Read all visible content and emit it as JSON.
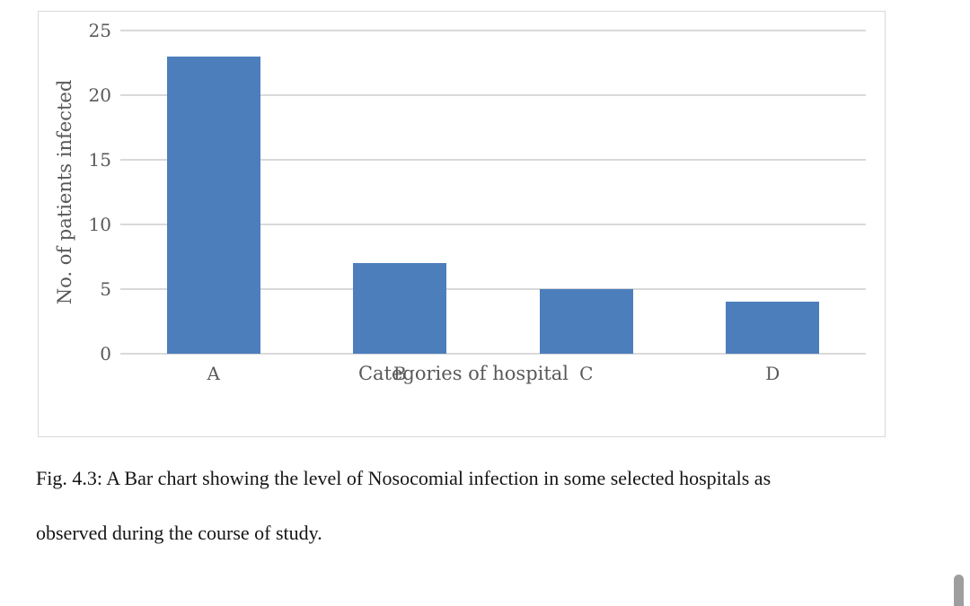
{
  "chart_data": {
    "type": "bar",
    "categories": [
      "A",
      "B",
      "C",
      "D"
    ],
    "values": [
      23,
      7,
      5,
      4
    ],
    "title": "",
    "xlabel": "Categories of hospital",
    "ylabel": "No. of patients infected",
    "ylim": [
      0,
      25
    ],
    "yticks": [
      0,
      5,
      10,
      15,
      20,
      25
    ],
    "grid": true,
    "legend": "none",
    "bar_color": "#4d7ebc",
    "gridline_color": "#d9d9d9",
    "axis_text_color": "#595959",
    "chart_border_color": "#d8d8d8"
  },
  "figure": {
    "caption_line1": "Fig. 4.3: A Bar chart showing the level of Nosocomial infection in some selected hospitals as",
    "caption_line2": "observed during the course of study."
  },
  "scrollbar": {
    "thumb_color": "#9e9e9e"
  }
}
